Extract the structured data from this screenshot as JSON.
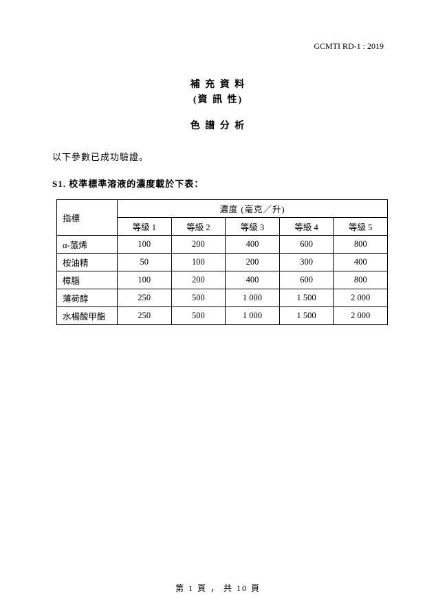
{
  "doc_id": "GCMTI RD-1 : 2019",
  "title_line1": "補 充 資 料",
  "title_line2": "(資 訊 性)",
  "subtitle": "色 譜 分 析",
  "intro_text": "以下參數已成功驗證。",
  "section_label": "S1. 校準標準溶液的濃度載於下表：",
  "table": {
    "type": "table",
    "row_header_label": "指標",
    "concentration_header": "濃度 (毫克／升)",
    "level_columns": [
      "等級 1",
      "等級 2",
      "等級 3",
      "等級 4",
      "等級 5"
    ],
    "rows": [
      {
        "name": "α-蒎烯",
        "v": [
          "100",
          "200",
          "400",
          "600",
          "800"
        ]
      },
      {
        "name": "桉油精",
        "v": [
          "50",
          "100",
          "200",
          "300",
          "400"
        ]
      },
      {
        "name": "樟腦",
        "v": [
          "100",
          "200",
          "400",
          "600",
          "800"
        ]
      },
      {
        "name": "薄荷醇",
        "v": [
          "250",
          "500",
          "1 000",
          "1 500",
          "2 000"
        ]
      },
      {
        "name": "水楊酸甲酯",
        "v": [
          "250",
          "500",
          "1 000",
          "1 500",
          "2 000"
        ]
      }
    ],
    "border_color": "#000000",
    "background_color": "#ffffff",
    "font_size_pt": 10,
    "cell_align_data": "center",
    "cell_align_rowheader": "left"
  },
  "footer": {
    "prefix": "第",
    "current_page": "1",
    "mid": "頁 ， 共",
    "total_pages": "10",
    "suffix": "頁"
  },
  "colors": {
    "text": "#000000",
    "background": "#ffffff"
  }
}
